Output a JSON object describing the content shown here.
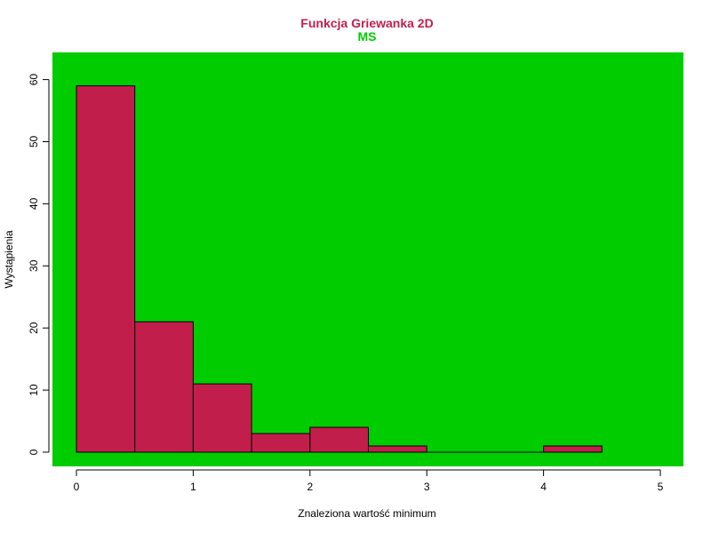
{
  "chart_data": {
    "type": "bar",
    "title": "Funkcja Griewanka 2D",
    "subtitle": "MS",
    "xlabel": "Znaleziona wartość minimum",
    "ylabel": "Wystąpienia",
    "bin_edges": [
      0,
      0.5,
      1,
      1.5,
      2,
      2.5,
      3,
      3.5,
      4,
      4.5
    ],
    "values": [
      59,
      21,
      11,
      3,
      4,
      1,
      0,
      0,
      1
    ],
    "xlim": [
      0,
      5
    ],
    "ylim": [
      0,
      60
    ],
    "x_ticks": [
      0,
      1,
      2,
      3,
      4,
      5
    ],
    "y_ticks": [
      0,
      10,
      20,
      30,
      40,
      50,
      60
    ],
    "grid": false,
    "colors": {
      "bar_fill": "#C21E4C",
      "plot_background": "#00CC00",
      "title": "#C21E4C",
      "subtitle": "#00CC00"
    }
  }
}
